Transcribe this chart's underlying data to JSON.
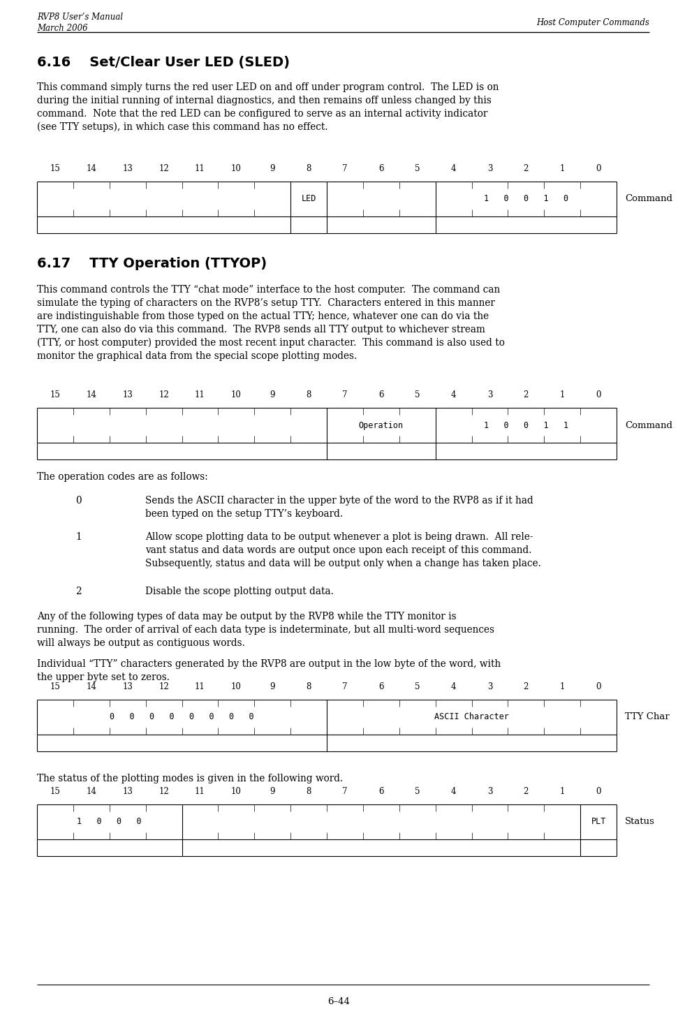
{
  "page_width": 9.71,
  "page_height": 14.55,
  "bg_color": "#ffffff",
  "header_left_line1": "RVP8 User’s Manual",
  "header_left_line2": "March 2006",
  "header_right": "Host Computer Commands",
  "footer_text": "6–44",
  "section1_title": "6.16    Set/Clear User LED (SLED)",
  "section1_body": "This command simply turns the red user LED on and off under program control.  The LED is on\nduring the initial running of internal diagnostics, and then remains off unless changed by this\ncommand.  Note that the red LED can be configured to serve as an internal activity indicator\n(see TTY setups), in which case this command has no effect.",
  "section2_title": "6.17    TTY Operation (TTYOP)",
  "section2_body": "This command controls the TTY “chat mode” interface to the host computer.  The command can\nsimulate the typing of characters on the RVP8’s setup TTY.  Characters entered in this manner\nare indistinguishable from those typed on the actual TTY; hence, whatever one can do via the\nTTY, one can also do via this command.  The RVP8 sends all TTY output to whichever stream\n(TTY, or host computer) provided the most recent input character.  This command is also used to\nmonitor the graphical data from the special scope plotting modes.",
  "opcodes_intro": "The operation codes are as follows:",
  "opcodes": [
    {
      "code": "0",
      "text": "Sends the ASCII character in the upper byte of the word to the RVP8 as if it had\nbeen typed on the setup TTY’s keyboard."
    },
    {
      "code": "1",
      "text": "Allow scope plotting data to be output whenever a plot is being drawn.  All rele-\nvant status and data words are output once upon each receipt of this command.\nSubsequently, status and data will be output only when a change has taken place."
    },
    {
      "code": "2",
      "text": "Disable the scope plotting output data."
    }
  ],
  "any_following": "Any of the following types of data may be output by the RVP8 while the TTY monitor is\nrunning.  The order of arrival of each data type is indeterminate, but all multi-word sequences\nwill always be output as contiguous words.",
  "individual_tty": "Individual “TTY” characters generated by the RVP8 are output in the low byte of the word, with\nthe upper byte set to zeros.",
  "status_text": "The status of the plotting modes is given in the following word.",
  "bit_numbers": [
    "15",
    "14",
    "13",
    "12",
    "11",
    "10",
    "9",
    "8",
    "7",
    "6",
    "5",
    "4",
    "3",
    "2",
    "1",
    "0"
  ]
}
